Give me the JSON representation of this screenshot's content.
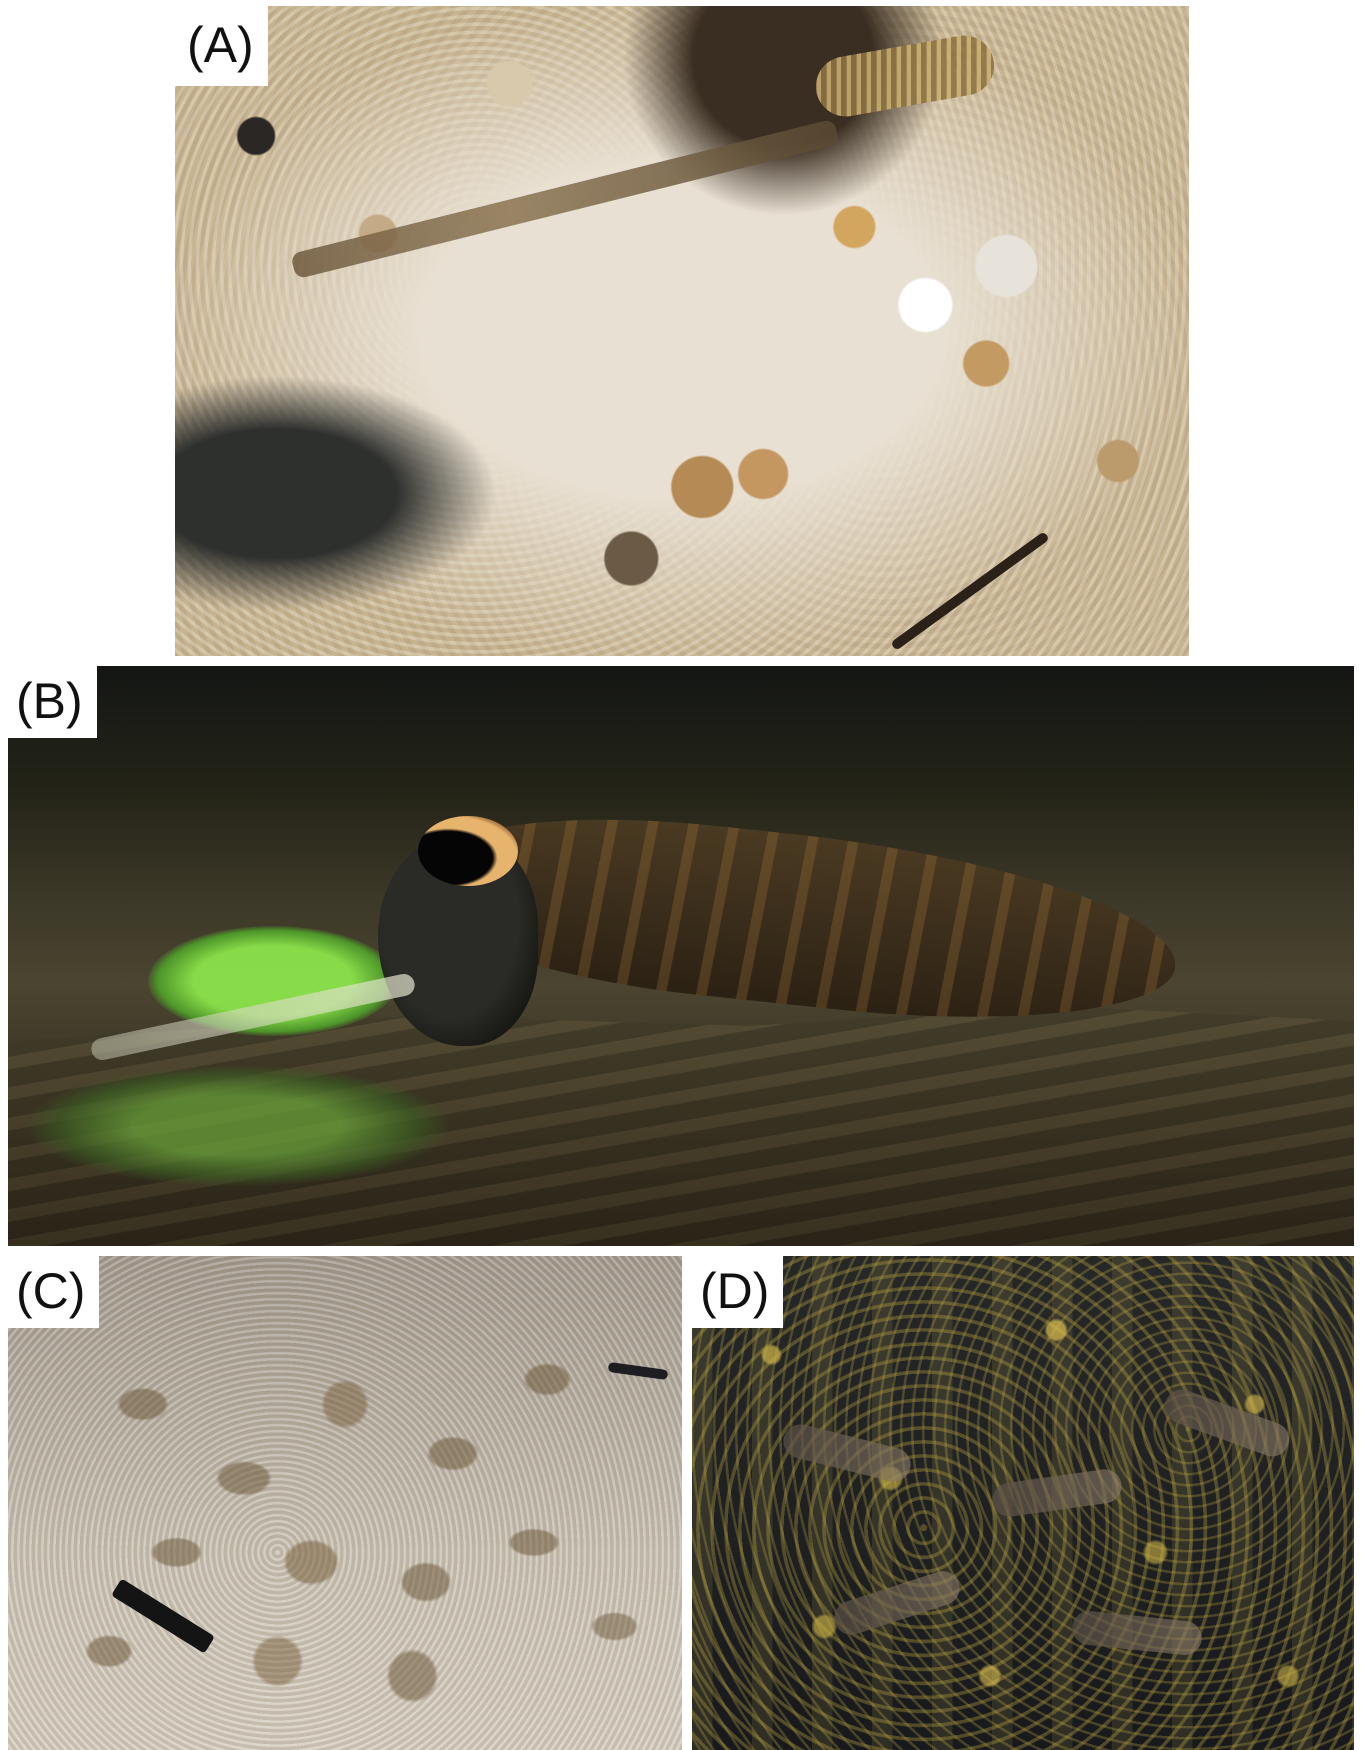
{
  "figure": {
    "panels": [
      {
        "label": "(A)"
      },
      {
        "label": "(B)"
      },
      {
        "label": "(C)"
      },
      {
        "label": "(D)"
      }
    ]
  }
}
